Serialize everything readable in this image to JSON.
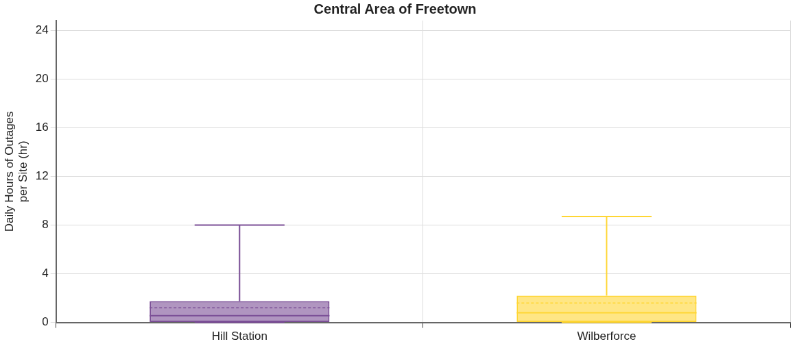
{
  "chart_data": {
    "type": "box",
    "title": "Central Area of Freetown",
    "ylabel": "Daily Hours of Outages per Site (hr)",
    "categories": [
      "Hill Station",
      "Wilberforce"
    ],
    "boxes": [
      {
        "low": 0,
        "q1": 0,
        "median": 0.55,
        "q3": 1.75,
        "high": 8.0,
        "mean": 1.2
      },
      {
        "low": 0,
        "q1": 0,
        "median": 0.8,
        "q3": 2.2,
        "high": 8.7,
        "mean": 1.6
      }
    ],
    "colors": [
      "#7b4f96",
      "#ffd633"
    ],
    "ylim": [
      0,
      24.8
    ],
    "yticks": [
      0,
      4,
      8,
      12,
      16,
      20,
      24
    ],
    "grid": true,
    "legend": false
  }
}
